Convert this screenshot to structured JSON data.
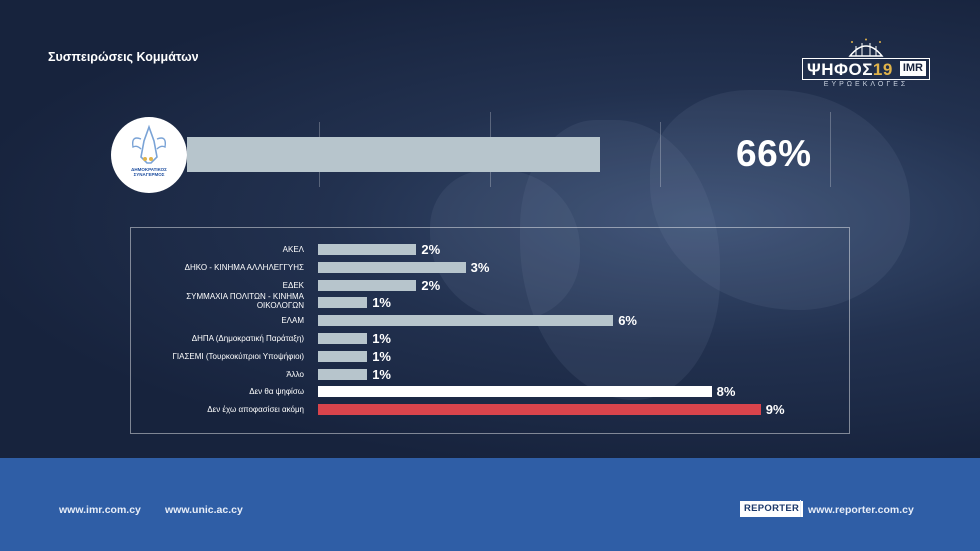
{
  "page_title": "Συσπειρώσεις Κομμάτων",
  "logo": {
    "main": "ΨΗΦΟΣ",
    "number": "19",
    "brand": "IMR",
    "subtitle": "ΕΥΡΩΕΚΛΟΓΕΣ"
  },
  "party_logo_caption": "ΔΗΜΟΚΡΑΤΙΚΟΣ ΣΥΝΑΓΕΡΜΟΣ",
  "colors": {
    "bar": "#b7c5cc",
    "highlight_white": "#ffffff",
    "highlight_red": "#d9444c",
    "footer": "#2f5ea6"
  },
  "chart_data": [
    {
      "type": "bar",
      "orientation": "horizontal",
      "categories": [
        "ΔΗΜΟΚΡΑΤΙΚΟΣ ΣΥΝΑΓΕΡΜΟΣ"
      ],
      "values": [
        66
      ],
      "value_labels": [
        "66%"
      ],
      "xlim": [
        0,
        100
      ],
      "grid": true
    },
    {
      "type": "bar",
      "orientation": "horizontal",
      "categories": [
        "ΑΚΕΛ",
        "ΔΗΚΟ - ΚΙΝΗΜΑ ΑΛΛΗΛΕΓΓΥΗΣ",
        "ΕΔΕΚ",
        "ΣΥΜΜΑΧΙΑ ΠΟΛΙΤΩΝ - ΚΙΝΗΜΑ ΟΙΚΟΛΟΓΩΝ",
        "ΕΛΑΜ",
        "ΔΗΠΑ (Δημοκρατική Παράταξη)",
        "ΓΙΑΣΕΜΙ (Τουρκοκύπριοι Υποψήφιοι)",
        "Άλλο",
        "Δεν θα ψηφίσω",
        "Δεν έχω αποφασίσει ακόμη"
      ],
      "values": [
        2,
        3,
        2,
        1,
        6,
        1,
        1,
        1,
        8,
        9
      ],
      "value_labels": [
        "2%",
        "3%",
        "2%",
        "1%",
        "6%",
        "1%",
        "1%",
        "1%",
        "8%",
        "9%"
      ],
      "bar_colors": [
        "#b7c5cc",
        "#b7c5cc",
        "#b7c5cc",
        "#b7c5cc",
        "#b7c5cc",
        "#b7c5cc",
        "#b7c5cc",
        "#b7c5cc",
        "#ffffff",
        "#d9444c"
      ],
      "xlim": [
        0,
        10
      ],
      "grid": false
    }
  ],
  "footer": {
    "link1": "www.imr.com.cy",
    "link2": "www.unic.ac.cy",
    "reporter_logo": "REPORTER",
    "link3": "www.reporter.com.cy"
  }
}
